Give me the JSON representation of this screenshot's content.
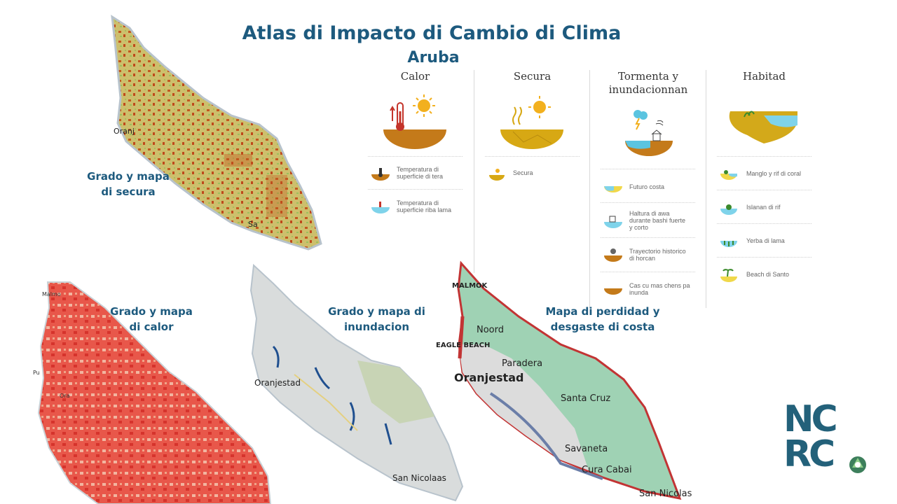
{
  "title": "Atlas di Impacto di Cambio di Clima",
  "subtitle": "Aruba",
  "maps": {
    "secura": {
      "label_line1": "Grado y mapa",
      "label_line2": "di secura",
      "places": [
        "Oranj",
        "Sa"
      ]
    },
    "calor": {
      "label_line1": "Grado y mapa",
      "label_line2": "di calor",
      "places": [
        "Malmo",
        "Pu",
        "Ora"
      ]
    },
    "inundacion": {
      "label_line1": "Grado y mapa di",
      "label_line2": "inundacion",
      "places": [
        "Oranjestad",
        "San Nicolaas"
      ]
    },
    "costa": {
      "label_line1": "Mapa di perdidad y",
      "label_line2": "desgaste di costa",
      "places": [
        "MALMOK",
        "Noord",
        "EAGLE BEACH",
        "Paradera",
        "Oranjestad",
        "Santa Cruz",
        "Savaneta",
        "Cura Cabai",
        "San Nicolas"
      ]
    }
  },
  "legend": {
    "columns": [
      {
        "title": "Calor",
        "items": [
          {
            "line1": "Temperatura di",
            "line2": "superficie di tera"
          },
          {
            "line1": "Temperatura di",
            "line2": "superficie riba lama"
          }
        ]
      },
      {
        "title": "Secura",
        "items": [
          {
            "line1": "Secura",
            "line2": ""
          }
        ]
      },
      {
        "title_line1": "Tormenta y",
        "title_line2": "inundacionnan",
        "items": [
          {
            "line1": "Futuro costa",
            "line2": "",
            "line3": ""
          },
          {
            "line1": "Haltura di awa",
            "line2": "durante bashi fuerte",
            "line3": "y corto"
          },
          {
            "line1": "Trayectorio historico",
            "line2": "di horcan",
            "line3": ""
          },
          {
            "line1": "Cas cu mas chens pa",
            "line2": "inunda",
            "line3": ""
          }
        ]
      },
      {
        "title": "Habitad",
        "items": [
          {
            "line1": "Manglo y rif di coral"
          },
          {
            "line1": "Islanan di rif"
          },
          {
            "line1": "Yerba di lama"
          },
          {
            "line1": "Beach di Santo"
          }
        ]
      }
    ]
  },
  "logo": {
    "line1": "NC",
    "line2": "RC"
  },
  "colors": {
    "accent": "#1d5a7e",
    "logo": "#23617a",
    "heat": "#e8574a",
    "drought": "#cdbf6c",
    "coast_green": "#9fd2b4"
  }
}
